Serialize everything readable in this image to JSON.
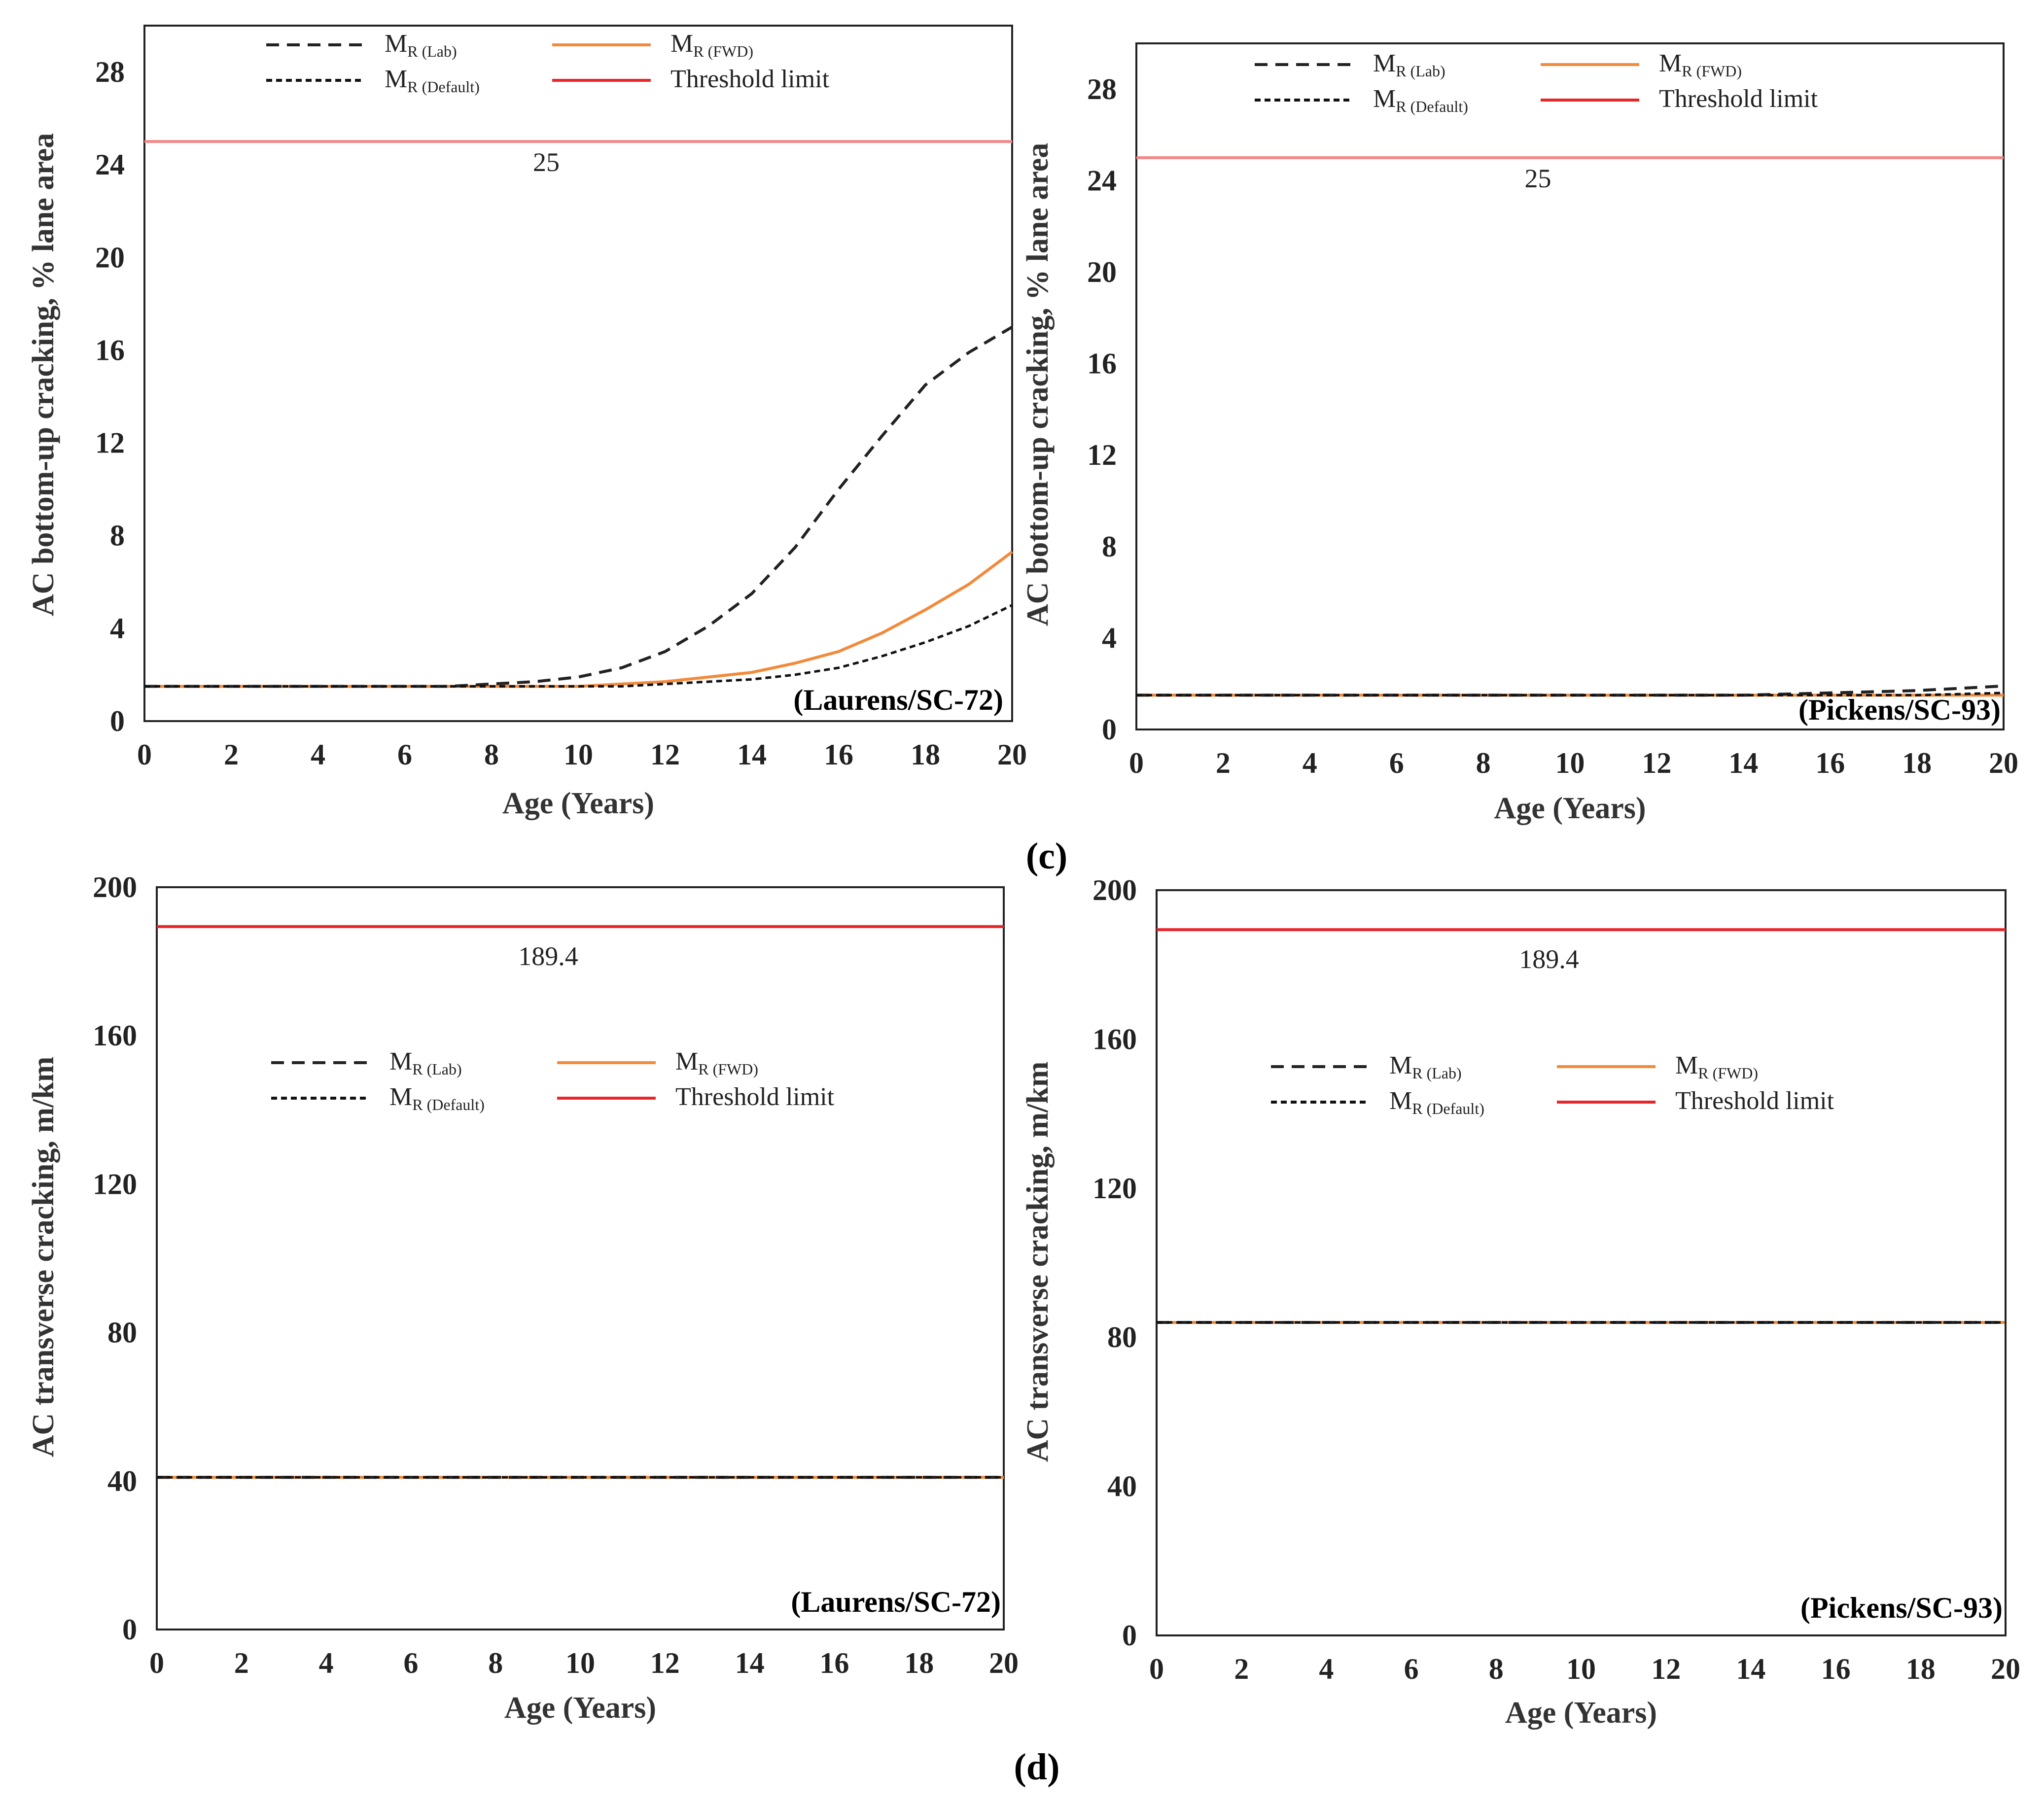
{
  "figure": {
    "panel_labels": [
      "(c)",
      "(d)"
    ],
    "colors": {
      "lab": "#222222",
      "default": "#111111",
      "fwd": "#f28a3c",
      "threshold": "#e8262a",
      "threshold_light": "#f08a8a"
    }
  },
  "legend": {
    "lab": {
      "main": "M",
      "sub": "R (Lab)"
    },
    "default": {
      "main": "M",
      "sub": "R (Default)"
    },
    "fwd": {
      "main": "M",
      "sub": "R (FWD)"
    },
    "threshold": "Threshold limit"
  },
  "chart_data": [
    {
      "type": "line",
      "panel": "c",
      "site": "(Laurens/SC-72)",
      "xlabel": "Age (Years)",
      "ylabel": "AC bottom-up cracking, % lane area",
      "xlim": [
        0,
        20
      ],
      "ylim": [
        0,
        30
      ],
      "xticks": [
        "0",
        "2",
        "4",
        "6",
        "8",
        "10",
        "12",
        "14",
        "16",
        "18",
        "20"
      ],
      "yticks": [
        "0",
        "4",
        "8",
        "12",
        "16",
        "20",
        "24",
        "28"
      ],
      "threshold": 25,
      "threshold_label": "25",
      "x": [
        0,
        1,
        2,
        3,
        4,
        5,
        6,
        7,
        8,
        9,
        10,
        11,
        12,
        13,
        14,
        15,
        16,
        17,
        18,
        19,
        20
      ],
      "series": [
        {
          "name": "MR (Lab)",
          "style": "lab",
          "values": [
            1.5,
            1.5,
            1.5,
            1.5,
            1.5,
            1.5,
            1.5,
            1.5,
            1.6,
            1.7,
            1.9,
            2.3,
            3.0,
            4.1,
            5.5,
            7.5,
            10.0,
            12.3,
            14.5,
            15.9,
            17.0
          ]
        },
        {
          "name": "MR (FWD)",
          "style": "fwd",
          "values": [
            1.5,
            1.5,
            1.5,
            1.5,
            1.5,
            1.5,
            1.5,
            1.5,
            1.5,
            1.5,
            1.5,
            1.6,
            1.7,
            1.9,
            2.1,
            2.5,
            3.0,
            3.8,
            4.8,
            5.9,
            7.3
          ]
        },
        {
          "name": "MR (Default)",
          "style": "default",
          "values": [
            1.5,
            1.5,
            1.5,
            1.5,
            1.5,
            1.5,
            1.5,
            1.5,
            1.5,
            1.5,
            1.5,
            1.5,
            1.6,
            1.7,
            1.8,
            2.0,
            2.3,
            2.8,
            3.4,
            4.1,
            5.0
          ]
        }
      ]
    },
    {
      "type": "line",
      "panel": "c",
      "site": "(Pickens/SC-93)",
      "xlabel": "Age (Years)",
      "ylabel": "AC bottom-up cracking, % lane area",
      "xlim": [
        0,
        20
      ],
      "ylim": [
        0,
        30
      ],
      "xticks": [
        "0",
        "2",
        "4",
        "6",
        "8",
        "10",
        "12",
        "14",
        "16",
        "18",
        "20"
      ],
      "yticks": [
        "0",
        "4",
        "8",
        "12",
        "16",
        "20",
        "24",
        "28"
      ],
      "threshold": 25,
      "threshold_label": "25",
      "x": [
        0,
        2,
        4,
        6,
        8,
        10,
        12,
        14,
        16,
        18,
        20
      ],
      "series": [
        {
          "name": "MR (Lab)",
          "style": "lab",
          "values": [
            1.5,
            1.5,
            1.5,
            1.5,
            1.5,
            1.5,
            1.5,
            1.5,
            1.6,
            1.7,
            1.9
          ]
        },
        {
          "name": "MR (FWD)",
          "style": "fwd",
          "values": [
            1.5,
            1.5,
            1.5,
            1.5,
            1.5,
            1.5,
            1.5,
            1.5,
            1.5,
            1.5,
            1.5
          ]
        },
        {
          "name": "MR (Default)",
          "style": "default",
          "values": [
            1.5,
            1.5,
            1.5,
            1.5,
            1.5,
            1.5,
            1.5,
            1.5,
            1.5,
            1.5,
            1.6
          ]
        }
      ]
    },
    {
      "type": "line",
      "panel": "d",
      "site": "(Laurens/SC-72)",
      "xlabel": "Age (Years)",
      "ylabel": "AC transverse cracking, m/km",
      "xlim": [
        0,
        20
      ],
      "ylim": [
        0,
        200
      ],
      "xticks": [
        "0",
        "2",
        "4",
        "6",
        "8",
        "10",
        "12",
        "14",
        "16",
        "18",
        "20"
      ],
      "yticks": [
        "0",
        "40",
        "80",
        "120",
        "160",
        "200"
      ],
      "threshold": 189.4,
      "threshold_label": "189.4",
      "x": [
        0,
        20
      ],
      "series": [
        {
          "name": "MR (Lab)",
          "style": "lab",
          "values": [
            41,
            41
          ]
        },
        {
          "name": "MR (FWD)",
          "style": "fwd",
          "values": [
            41,
            41
          ]
        },
        {
          "name": "MR (Default)",
          "style": "default",
          "values": [
            41,
            41
          ]
        }
      ]
    },
    {
      "type": "line",
      "panel": "d",
      "site": "(Pickens/SC-93)",
      "xlabel": "Age (Years)",
      "ylabel": "AC transverse cracking, m/km",
      "xlim": [
        0,
        20
      ],
      "ylim": [
        0,
        200
      ],
      "xticks": [
        "0",
        "2",
        "4",
        "6",
        "8",
        "10",
        "12",
        "14",
        "16",
        "18",
        "20"
      ],
      "yticks": [
        "0",
        "40",
        "80",
        "120",
        "160",
        "200"
      ],
      "threshold": 189.4,
      "threshold_label": "189.4",
      "x": [
        0,
        20
      ],
      "series": [
        {
          "name": "MR (Lab)",
          "style": "lab",
          "values": [
            84,
            84
          ]
        },
        {
          "name": "MR (FWD)",
          "style": "fwd",
          "values": [
            84,
            84
          ]
        },
        {
          "name": "MR (Default)",
          "style": "default",
          "values": [
            84,
            84
          ]
        }
      ]
    }
  ]
}
